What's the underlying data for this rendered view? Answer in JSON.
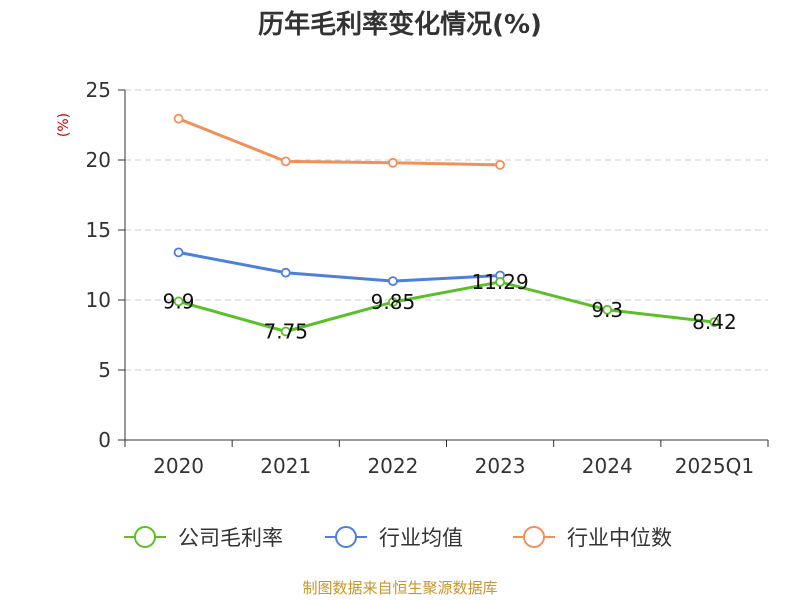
{
  "chart_data": {
    "type": "line",
    "title": "历年毛利率变化情况(%)",
    "ylabel": "(%)",
    "xlabel": "",
    "categories": [
      "2020",
      "2021",
      "2022",
      "2023",
      "2024",
      "2025Q1"
    ],
    "ylim": [
      0,
      25
    ],
    "yticks": [
      0,
      5,
      10,
      15,
      20,
      25
    ],
    "grid": true,
    "legend_position": "bottom",
    "series": [
      {
        "name": "公司毛利率",
        "color": "#5cbf2a",
        "values": [
          9.9,
          7.75,
          9.85,
          11.29,
          9.3,
          8.42
        ],
        "labels": [
          "9.9",
          "7.75",
          "9.85",
          "11.29",
          "9.3",
          "8.42"
        ]
      },
      {
        "name": "行业均值",
        "color": "#4e7fdc",
        "values": [
          13.4,
          11.95,
          11.35,
          11.75,
          null,
          null
        ]
      },
      {
        "name": "行业中位数",
        "color": "#f2905a",
        "values": [
          22.95,
          19.9,
          19.8,
          19.65,
          null,
          null
        ]
      }
    ]
  },
  "source": "制图数据来自恒生聚源数据库",
  "colors": {
    "unit": "#cc0000",
    "source": "#c8962c",
    "axis": "#333333",
    "grid": "#cccccc"
  }
}
